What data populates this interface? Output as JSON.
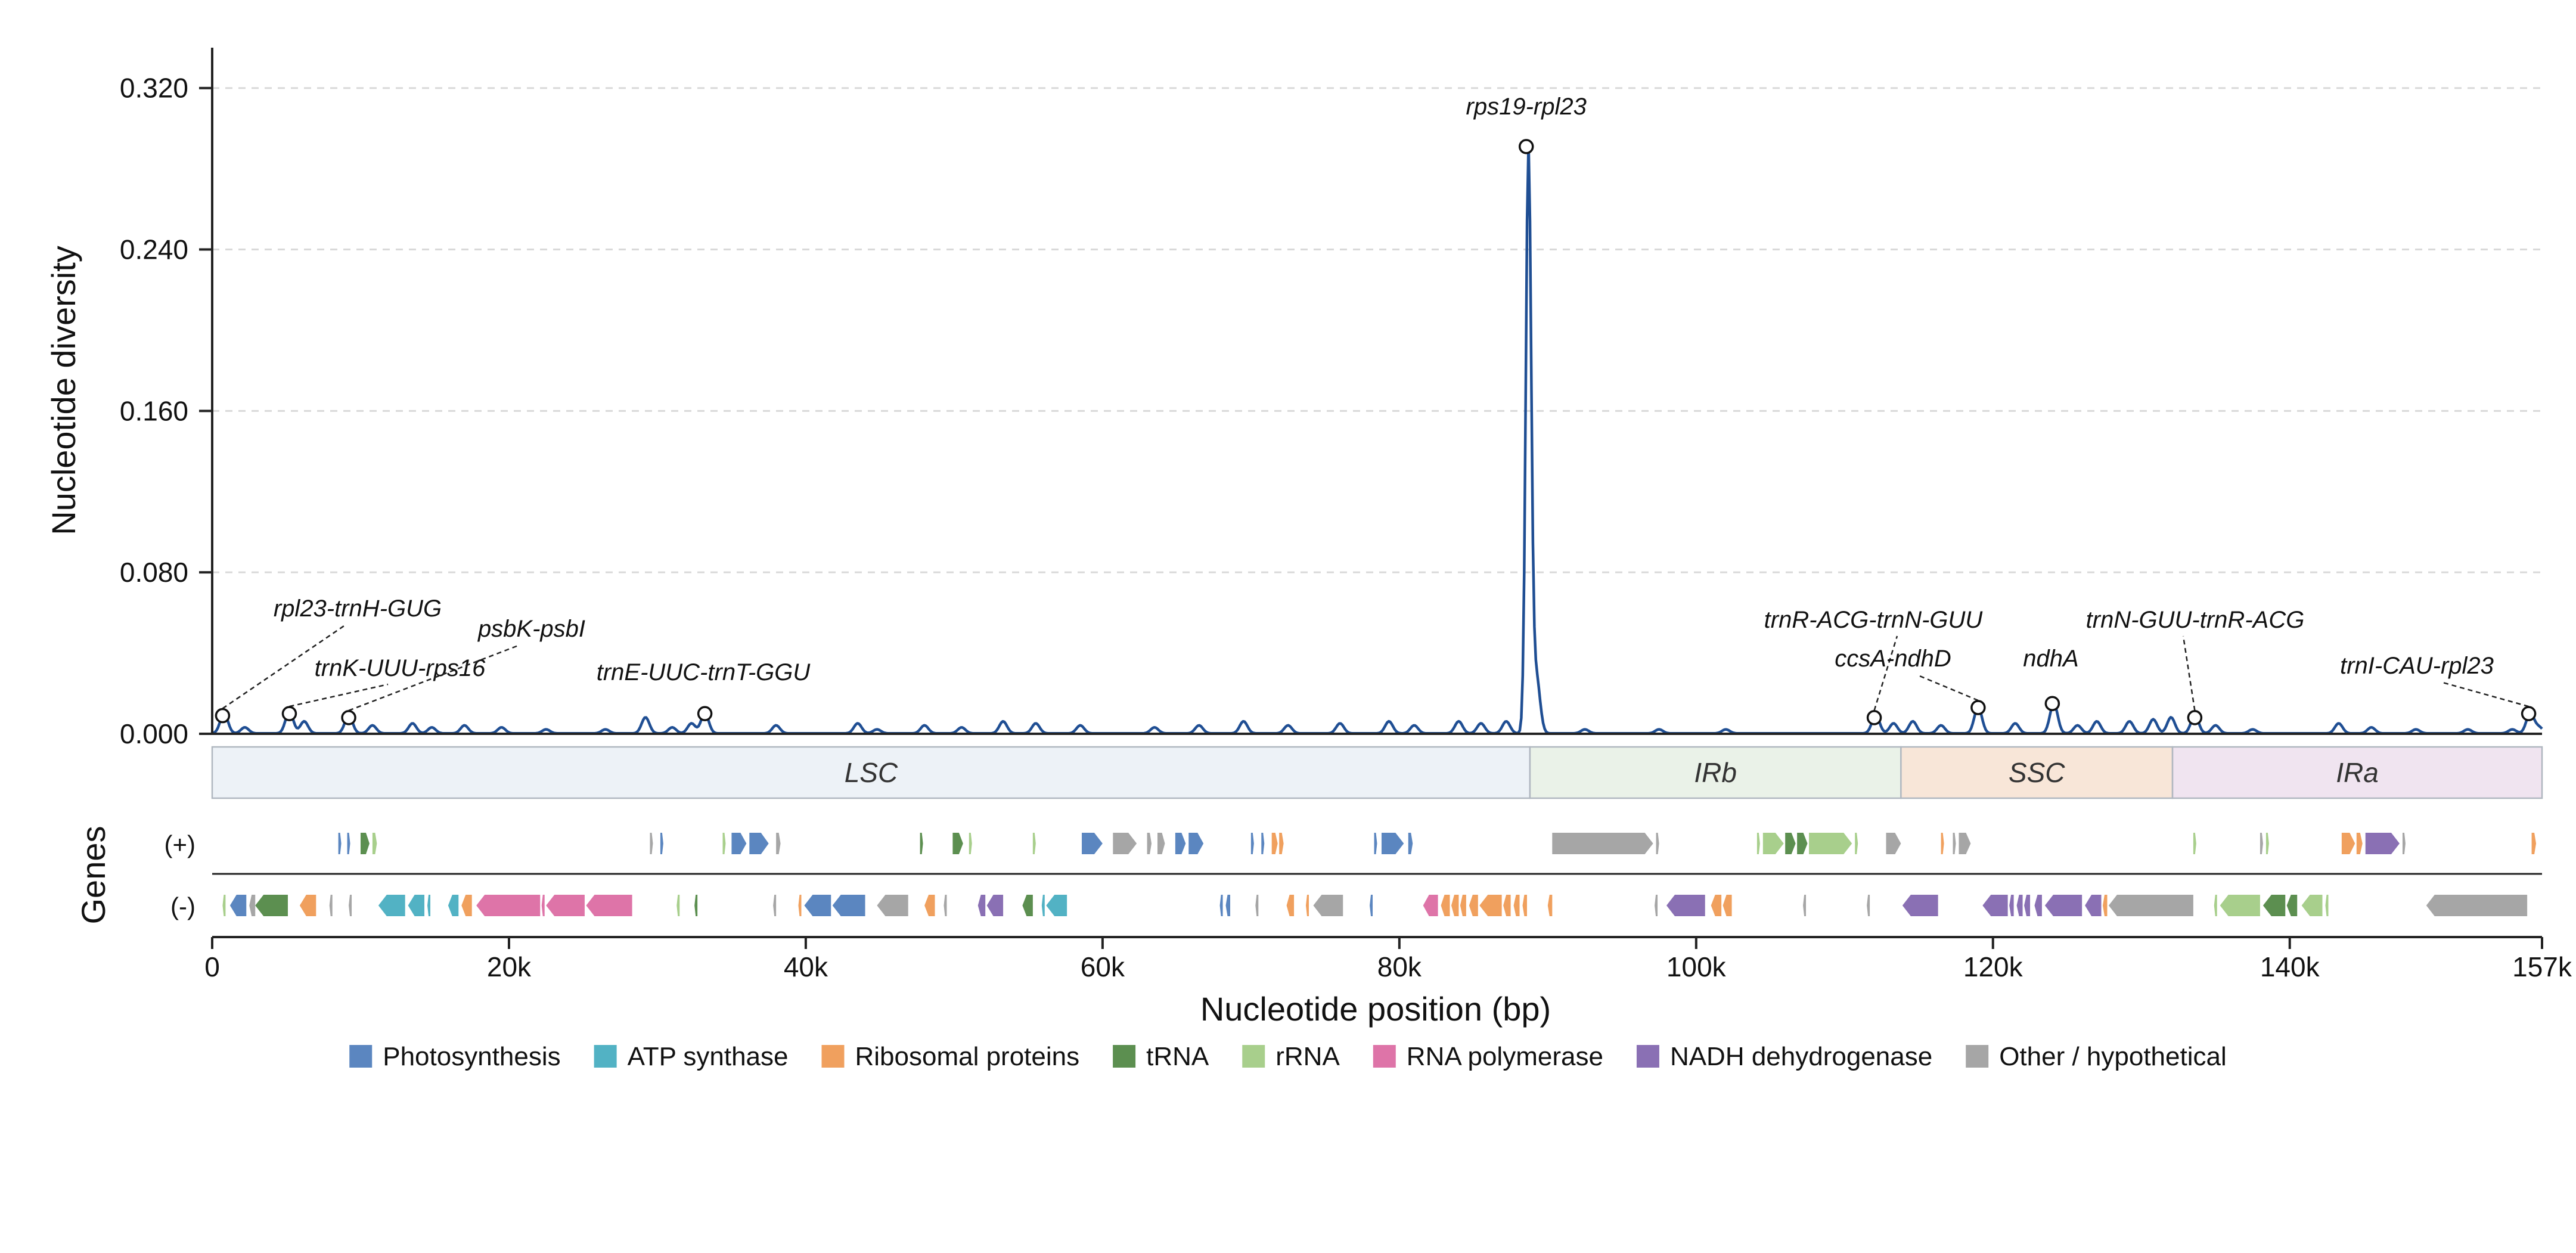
{
  "chart_data": {
    "type": "line",
    "ylabel": "Nucleotide diversity",
    "xlabel": "Nucleotide position (bp)",
    "genes_label": "Genes",
    "xlim": [
      0,
      157000
    ],
    "ylim": [
      0,
      0.34
    ],
    "y_ticks": [
      0,
      0.08,
      0.16,
      0.24,
      0.32
    ],
    "y_tick_labels": [
      "0.000",
      "0.080",
      "0.160",
      "0.240",
      "0.320"
    ],
    "x_ticks": [
      0,
      20000,
      40000,
      60000,
      80000,
      100000,
      120000,
      140000,
      157000
    ],
    "x_tick_labels": [
      "0",
      "20k",
      "40k",
      "60k",
      "80k",
      "100k",
      "120k",
      "140k",
      "157k"
    ],
    "grid": "horizontal dashed",
    "line_color": "#1f4e93",
    "baseline_pi": 0.0002,
    "peaks": [
      {
        "x": 800,
        "y": 0.01
      },
      {
        "x": 2200,
        "y": 0.003
      },
      {
        "x": 5200,
        "y": 0.011
      },
      {
        "x": 6200,
        "y": 0.006
      },
      {
        "x": 9200,
        "y": 0.009
      },
      {
        "x": 10800,
        "y": 0.004
      },
      {
        "x": 13500,
        "y": 0.005
      },
      {
        "x": 14800,
        "y": 0.003
      },
      {
        "x": 17000,
        "y": 0.004
      },
      {
        "x": 19500,
        "y": 0.003
      },
      {
        "x": 22500,
        "y": 0.002
      },
      {
        "x": 26500,
        "y": 0.002
      },
      {
        "x": 29200,
        "y": 0.008
      },
      {
        "x": 31000,
        "y": 0.003
      },
      {
        "x": 32300,
        "y": 0.005
      },
      {
        "x": 33200,
        "y": 0.01
      },
      {
        "x": 38000,
        "y": 0.004
      },
      {
        "x": 43500,
        "y": 0.005
      },
      {
        "x": 44800,
        "y": 0.002
      },
      {
        "x": 48000,
        "y": 0.004
      },
      {
        "x": 50500,
        "y": 0.003
      },
      {
        "x": 53300,
        "y": 0.006
      },
      {
        "x": 55500,
        "y": 0.005
      },
      {
        "x": 58500,
        "y": 0.004
      },
      {
        "x": 63500,
        "y": 0.003
      },
      {
        "x": 66500,
        "y": 0.004
      },
      {
        "x": 69500,
        "y": 0.006
      },
      {
        "x": 72500,
        "y": 0.004
      },
      {
        "x": 76000,
        "y": 0.005
      },
      {
        "x": 79300,
        "y": 0.006
      },
      {
        "x": 81000,
        "y": 0.004
      },
      {
        "x": 84000,
        "y": 0.006
      },
      {
        "x": 85500,
        "y": 0.005
      },
      {
        "x": 87200,
        "y": 0.006
      },
      {
        "x": 88700,
        "y": 0.288
      },
      {
        "x": 89200,
        "y": 0.03
      },
      {
        "x": 92500,
        "y": 0.002
      },
      {
        "x": 97500,
        "y": 0.002
      },
      {
        "x": 102000,
        "y": 0.002
      },
      {
        "x": 112100,
        "y": 0.009
      },
      {
        "x": 113300,
        "y": 0.005
      },
      {
        "x": 114600,
        "y": 0.006
      },
      {
        "x": 116500,
        "y": 0.004
      },
      {
        "x": 119000,
        "y": 0.013
      },
      {
        "x": 121500,
        "y": 0.005
      },
      {
        "x": 124100,
        "y": 0.015
      },
      {
        "x": 125700,
        "y": 0.004
      },
      {
        "x": 127000,
        "y": 0.006
      },
      {
        "x": 129200,
        "y": 0.006
      },
      {
        "x": 130800,
        "y": 0.007
      },
      {
        "x": 132000,
        "y": 0.008
      },
      {
        "x": 133600,
        "y": 0.009
      },
      {
        "x": 135000,
        "y": 0.004
      },
      {
        "x": 137500,
        "y": 0.002
      },
      {
        "x": 143300,
        "y": 0.005
      },
      {
        "x": 145500,
        "y": 0.003
      },
      {
        "x": 148500,
        "y": 0.002
      },
      {
        "x": 152000,
        "y": 0.002
      },
      {
        "x": 155000,
        "y": 0.002
      },
      {
        "x": 156200,
        "y": 0.01
      },
      {
        "x": 156800,
        "y": 0.003
      }
    ],
    "annotations": [
      {
        "label": "rps19-rpl23",
        "x": 88550,
        "y": 0.291
      },
      {
        "label": "rpl23-trnH-GUG",
        "x": 700,
        "y": 0.009
      },
      {
        "label": "trnK-UUU-rps16",
        "x": 5200,
        "y": 0.01
      },
      {
        "label": "psbK-psbI",
        "x": 9200,
        "y": 0.008
      },
      {
        "label": "trnE-UUC-trnT-GGU",
        "x": 33200,
        "y": 0.01
      },
      {
        "label": "trnR-ACG-trnN-GUU",
        "x": 112000,
        "y": 0.008
      },
      {
        "label": "ccsA-ndhD",
        "x": 119000,
        "y": 0.013
      },
      {
        "label": "ndhA",
        "x": 124000,
        "y": 0.015
      },
      {
        "label": "trnN-GUU-trnR-ACG",
        "x": 133600,
        "y": 0.008
      },
      {
        "label": "trnI-CAU-rpl23",
        "x": 156100,
        "y": 0.01
      }
    ],
    "regions": [
      {
        "name": "LSC",
        "start": 0,
        "end": 88800,
        "color": "#edf2f7"
      },
      {
        "name": "IRb",
        "start": 88800,
        "end": 113800,
        "color": "#eaf2e8"
      },
      {
        "name": "SSC",
        "start": 113800,
        "end": 132100,
        "color": "#f8e6d8"
      },
      {
        "name": "IRa",
        "start": 132100,
        "end": 157000,
        "color": "#f0e4f0"
      }
    ],
    "strand_labels": {
      "plus": "(+)",
      "minus": "(-)"
    },
    "gene_categories": [
      {
        "name": "Photosynthesis",
        "color": "#5b86c0"
      },
      {
        "name": "ATP synthase",
        "color": "#52b2c4"
      },
      {
        "name": "Ribosomal proteins",
        "color": "#f0a05e"
      },
      {
        "name": "tRNA",
        "color": "#5c8f50"
      },
      {
        "name": "rRNA",
        "color": "#a8cf8c"
      },
      {
        "name": "RNA polymerase",
        "color": "#de74a8"
      },
      {
        "name": "NADH dehydrogenase",
        "color": "#8a70b4"
      },
      {
        "name": "Other / hypothetical",
        "color": "#a6a6a6"
      }
    ],
    "genes_plus": [
      {
        "start": 8500,
        "end": 8700,
        "cat": 0
      },
      {
        "start": 9100,
        "end": 9300,
        "cat": 0
      },
      {
        "start": 10000,
        "end": 10600,
        "cat": 3
      },
      {
        "start": 10800,
        "end": 11100,
        "cat": 4
      },
      {
        "start": 29500,
        "end": 29700,
        "cat": 7
      },
      {
        "start": 30200,
        "end": 30400,
        "cat": 0
      },
      {
        "start": 34400,
        "end": 34600,
        "cat": 4
      },
      {
        "start": 35000,
        "end": 36000,
        "cat": 0
      },
      {
        "start": 36200,
        "end": 37500,
        "cat": 0
      },
      {
        "start": 38000,
        "end": 38300,
        "cat": 7
      },
      {
        "start": 47700,
        "end": 47900,
        "cat": 3
      },
      {
        "start": 49900,
        "end": 50600,
        "cat": 3
      },
      {
        "start": 51000,
        "end": 51200,
        "cat": 4
      },
      {
        "start": 55300,
        "end": 55500,
        "cat": 4
      },
      {
        "start": 58600,
        "end": 60000,
        "cat": 0
      },
      {
        "start": 60700,
        "end": 62300,
        "cat": 7
      },
      {
        "start": 63000,
        "end": 63300,
        "cat": 7
      },
      {
        "start": 63700,
        "end": 64200,
        "cat": 7
      },
      {
        "start": 64900,
        "end": 65600,
        "cat": 0
      },
      {
        "start": 65800,
        "end": 66800,
        "cat": 0
      },
      {
        "start": 70000,
        "end": 70200,
        "cat": 0
      },
      {
        "start": 70700,
        "end": 70900,
        "cat": 0
      },
      {
        "start": 71400,
        "end": 71800,
        "cat": 2
      },
      {
        "start": 71900,
        "end": 72200,
        "cat": 2
      },
      {
        "start": 78300,
        "end": 78500,
        "cat": 0
      },
      {
        "start": 78800,
        "end": 80300,
        "cat": 0
      },
      {
        "start": 80600,
        "end": 80900,
        "cat": 0
      },
      {
        "start": 90300,
        "end": 97100,
        "cat": 7
      },
      {
        "start": 97300,
        "end": 97500,
        "cat": 7
      },
      {
        "start": 104100,
        "end": 104300,
        "cat": 4
      },
      {
        "start": 104500,
        "end": 105900,
        "cat": 4
      },
      {
        "start": 106000,
        "end": 106700,
        "cat": 3
      },
      {
        "start": 106800,
        "end": 107500,
        "cat": 3
      },
      {
        "start": 107600,
        "end": 110500,
        "cat": 4
      },
      {
        "start": 110700,
        "end": 110900,
        "cat": 4
      },
      {
        "start": 112800,
        "end": 113800,
        "cat": 7
      },
      {
        "start": 116500,
        "end": 116700,
        "cat": 2
      },
      {
        "start": 117300,
        "end": 117500,
        "cat": 7
      },
      {
        "start": 117700,
        "end": 118500,
        "cat": 7
      },
      {
        "start": 133500,
        "end": 133700,
        "cat": 4
      },
      {
        "start": 138000,
        "end": 138200,
        "cat": 7
      },
      {
        "start": 138400,
        "end": 138600,
        "cat": 4
      },
      {
        "start": 143500,
        "end": 144400,
        "cat": 2
      },
      {
        "start": 144500,
        "end": 144900,
        "cat": 2
      },
      {
        "start": 145100,
        "end": 147400,
        "cat": 6
      },
      {
        "start": 147600,
        "end": 147800,
        "cat": 7
      },
      {
        "start": 156300,
        "end": 156600,
        "cat": 2
      }
    ],
    "genes_minus": [
      {
        "start": 700,
        "end": 900,
        "cat": 4
      },
      {
        "start": 1200,
        "end": 2300,
        "cat": 0
      },
      {
        "start": 2500,
        "end": 2900,
        "cat": 7
      },
      {
        "start": 2900,
        "end": 5100,
        "cat": 3
      },
      {
        "start": 5900,
        "end": 7000,
        "cat": 2
      },
      {
        "start": 7900,
        "end": 8100,
        "cat": 7
      },
      {
        "start": 9200,
        "end": 9400,
        "cat": 7
      },
      {
        "start": 11200,
        "end": 13000,
        "cat": 1
      },
      {
        "start": 13200,
        "end": 14300,
        "cat": 1
      },
      {
        "start": 14500,
        "end": 14700,
        "cat": 1
      },
      {
        "start": 15900,
        "end": 16600,
        "cat": 1
      },
      {
        "start": 16800,
        "end": 17500,
        "cat": 2
      },
      {
        "start": 17800,
        "end": 22100,
        "cat": 5
      },
      {
        "start": 22200,
        "end": 22400,
        "cat": 5
      },
      {
        "start": 22500,
        "end": 25100,
        "cat": 5
      },
      {
        "start": 25200,
        "end": 28300,
        "cat": 5
      },
      {
        "start": 31300,
        "end": 31500,
        "cat": 4
      },
      {
        "start": 32500,
        "end": 32700,
        "cat": 3
      },
      {
        "start": 37800,
        "end": 38000,
        "cat": 7
      },
      {
        "start": 39500,
        "end": 39700,
        "cat": 2
      },
      {
        "start": 39900,
        "end": 41700,
        "cat": 0
      },
      {
        "start": 41800,
        "end": 44000,
        "cat": 0
      },
      {
        "start": 44800,
        "end": 46900,
        "cat": 7
      },
      {
        "start": 48000,
        "end": 48700,
        "cat": 2
      },
      {
        "start": 49300,
        "end": 49500,
        "cat": 7
      },
      {
        "start": 51600,
        "end": 52100,
        "cat": 6
      },
      {
        "start": 52200,
        "end": 53300,
        "cat": 6
      },
      {
        "start": 54600,
        "end": 55300,
        "cat": 3
      },
      {
        "start": 55900,
        "end": 56100,
        "cat": 1
      },
      {
        "start": 56200,
        "end": 57600,
        "cat": 1
      },
      {
        "start": 67900,
        "end": 68100,
        "cat": 0
      },
      {
        "start": 68300,
        "end": 68600,
        "cat": 0
      },
      {
        "start": 70300,
        "end": 70500,
        "cat": 7
      },
      {
        "start": 72400,
        "end": 72900,
        "cat": 2
      },
      {
        "start": 73700,
        "end": 73900,
        "cat": 2
      },
      {
        "start": 74200,
        "end": 76200,
        "cat": 7
      },
      {
        "start": 78000,
        "end": 78200,
        "cat": 0
      },
      {
        "start": 81600,
        "end": 82600,
        "cat": 5
      },
      {
        "start": 82800,
        "end": 83400,
        "cat": 2
      },
      {
        "start": 83500,
        "end": 84000,
        "cat": 2
      },
      {
        "start": 84100,
        "end": 84500,
        "cat": 2
      },
      {
        "start": 84700,
        "end": 85300,
        "cat": 2
      },
      {
        "start": 85400,
        "end": 86900,
        "cat": 2
      },
      {
        "start": 87000,
        "end": 87500,
        "cat": 2
      },
      {
        "start": 87700,
        "end": 88100,
        "cat": 2
      },
      {
        "start": 88300,
        "end": 88600,
        "cat": 2
      },
      {
        "start": 90000,
        "end": 90300,
        "cat": 2
      },
      {
        "start": 97200,
        "end": 97400,
        "cat": 7
      },
      {
        "start": 98000,
        "end": 100600,
        "cat": 6
      },
      {
        "start": 101000,
        "end": 101700,
        "cat": 2
      },
      {
        "start": 101800,
        "end": 102400,
        "cat": 2
      },
      {
        "start": 107200,
        "end": 107400,
        "cat": 7
      },
      {
        "start": 111500,
        "end": 111700,
        "cat": 7
      },
      {
        "start": 113900,
        "end": 116300,
        "cat": 6
      },
      {
        "start": 119300,
        "end": 121000,
        "cat": 6
      },
      {
        "start": 121100,
        "end": 121400,
        "cat": 6
      },
      {
        "start": 121600,
        "end": 122000,
        "cat": 6
      },
      {
        "start": 122100,
        "end": 122500,
        "cat": 6
      },
      {
        "start": 122800,
        "end": 123300,
        "cat": 6
      },
      {
        "start": 123500,
        "end": 126000,
        "cat": 6
      },
      {
        "start": 126200,
        "end": 127300,
        "cat": 6
      },
      {
        "start": 127400,
        "end": 127700,
        "cat": 2
      },
      {
        "start": 127800,
        "end": 133500,
        "cat": 7
      },
      {
        "start": 134900,
        "end": 135100,
        "cat": 4
      },
      {
        "start": 135300,
        "end": 138000,
        "cat": 4
      },
      {
        "start": 138200,
        "end": 139700,
        "cat": 3
      },
      {
        "start": 139800,
        "end": 140500,
        "cat": 3
      },
      {
        "start": 140800,
        "end": 142200,
        "cat": 4
      },
      {
        "start": 142400,
        "end": 142600,
        "cat": 4
      },
      {
        "start": 149200,
        "end": 156000,
        "cat": 7
      }
    ]
  }
}
